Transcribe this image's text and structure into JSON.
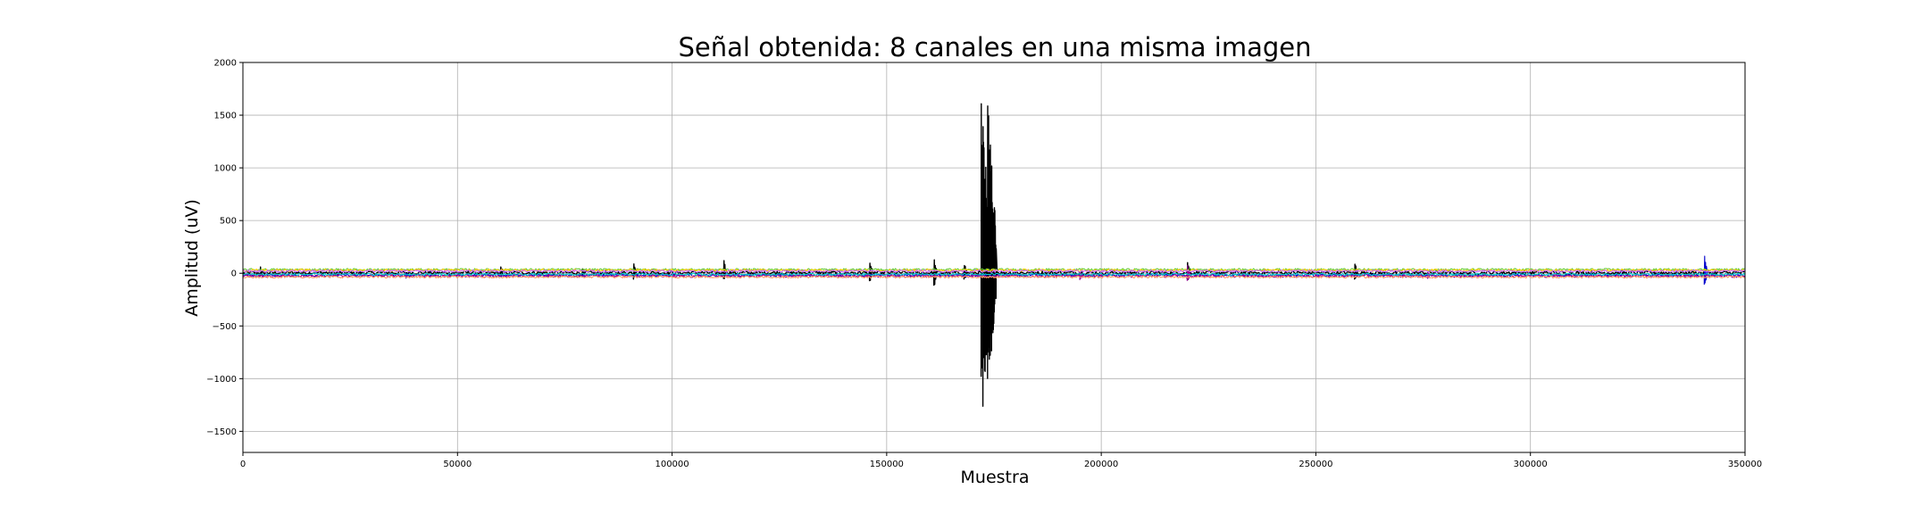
{
  "chart_data": {
    "type": "line",
    "title": "Señal obtenida: 8 canales en una misma imagen",
    "xlabel": "Muestra",
    "ylabel": "Amplitud (uV)",
    "xlim": [
      0,
      350000
    ],
    "ylim": [
      -1700,
      2000
    ],
    "grid": true,
    "x_ticks": [
      0,
      50000,
      100000,
      150000,
      200000,
      250000,
      300000,
      350000
    ],
    "x_tick_labels": [
      "0",
      "50000",
      "100000",
      "150000",
      "200000",
      "250000",
      "300000",
      "350000"
    ],
    "y_ticks": [
      -1500,
      -1000,
      -500,
      0,
      500,
      1000,
      1500,
      2000
    ],
    "y_tick_labels": [
      "−1500",
      "−1000",
      "−500",
      "0",
      "500",
      "1000",
      "1500",
      "2000"
    ],
    "series": [
      {
        "color": "#000000",
        "baseline": 5,
        "noise": 18,
        "events": [
          [
            4000,
            70,
            -40
          ],
          [
            22000,
            30,
            -25
          ],
          [
            60000,
            90,
            -60
          ],
          [
            79000,
            60,
            -40
          ],
          [
            91000,
            110,
            -70
          ],
          [
            112000,
            140,
            -80
          ],
          [
            146000,
            120,
            -110
          ],
          [
            161000,
            200,
            -150
          ],
          [
            168000,
            120,
            -90
          ],
          [
            172000,
            1780,
            -1510
          ],
          [
            173500,
            1650,
            -1150
          ],
          [
            175000,
            300,
            -250
          ],
          [
            220000,
            130,
            -90
          ],
          [
            259000,
            120,
            -90
          ]
        ]
      },
      {
        "color": "#0000cc",
        "baseline": -20,
        "noise": 12,
        "events": [
          [
            340500,
            260,
            -140
          ],
          [
            38000,
            30,
            -30
          ]
        ]
      },
      {
        "color": "#990099",
        "baseline": -25,
        "noise": 15,
        "events": [
          [
            220000,
            120,
            -60
          ],
          [
            276000,
            60,
            -40
          ],
          [
            195000,
            40,
            -40
          ]
        ]
      },
      {
        "color": "#66cc33",
        "baseline": 35,
        "noise": 10,
        "events": []
      },
      {
        "color": "#ffcc00",
        "baseline": 28,
        "noise": 12,
        "events": []
      },
      {
        "color": "#00cccc",
        "baseline": -10,
        "noise": 10,
        "events": []
      },
      {
        "color": "#cc66ff",
        "baseline": 20,
        "noise": 12,
        "events": []
      },
      {
        "color": "#ff9966",
        "baseline": -35,
        "noise": 10,
        "events": []
      }
    ]
  }
}
